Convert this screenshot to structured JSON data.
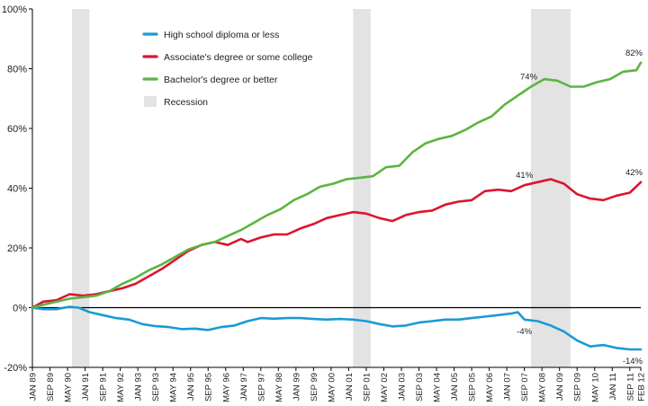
{
  "chart_data": {
    "type": "line",
    "title": "",
    "xlabel": "",
    "ylabel": "",
    "ylim": [
      -20,
      100
    ],
    "grid": false,
    "legend_position": "top-center",
    "yticks": [
      {
        "value": 100,
        "label": "100%"
      },
      {
        "value": 80,
        "label": "80%"
      },
      {
        "value": 60,
        "label": "60%"
      },
      {
        "value": 40,
        "label": "40%"
      },
      {
        "value": 20,
        "label": "20%"
      },
      {
        "value": 0,
        "label": "0%"
      },
      {
        "value": -20,
        "label": "-20%"
      }
    ],
    "xticks": [
      {
        "date": "1989-01",
        "label": "JAN 89"
      },
      {
        "date": "1989-09",
        "label": "SEP 89"
      },
      {
        "date": "1990-05",
        "label": "MAY 90"
      },
      {
        "date": "1991-01",
        "label": "JAN 91"
      },
      {
        "date": "1991-09",
        "label": "SEP 91"
      },
      {
        "date": "1992-05",
        "label": "MAY 92"
      },
      {
        "date": "1993-01",
        "label": "JAN 93"
      },
      {
        "date": "1993-09",
        "label": "SEP 93"
      },
      {
        "date": "1994-05",
        "label": "MAY 94"
      },
      {
        "date": "1995-01",
        "label": "JAN 95"
      },
      {
        "date": "1995-09",
        "label": "SEP 95"
      },
      {
        "date": "1996-05",
        "label": "MAY 96"
      },
      {
        "date": "1997-01",
        "label": "JAN 97"
      },
      {
        "date": "1997-09",
        "label": "SEP 97"
      },
      {
        "date": "1998-05",
        "label": "MAY 98"
      },
      {
        "date": "1999-01",
        "label": "JAN 99"
      },
      {
        "date": "1999-09",
        "label": "SEP 99"
      },
      {
        "date": "2000-05",
        "label": "MAY 00"
      },
      {
        "date": "2001-01",
        "label": "JAN 01"
      },
      {
        "date": "2001-09",
        "label": "SEP 01"
      },
      {
        "date": "2002-05",
        "label": "MAY 02"
      },
      {
        "date": "2003-01",
        "label": "JAN 03"
      },
      {
        "date": "2003-09",
        "label": "SEP 03"
      },
      {
        "date": "2004-05",
        "label": "MAY 04"
      },
      {
        "date": "2005-01",
        "label": "JAN 05"
      },
      {
        "date": "2005-09",
        "label": "SEP 05"
      },
      {
        "date": "2006-05",
        "label": "MAY 06"
      },
      {
        "date": "2007-01",
        "label": "JAN 07"
      },
      {
        "date": "2007-09",
        "label": "SEP 07"
      },
      {
        "date": "2008-05",
        "label": "MAY 08"
      },
      {
        "date": "2009-01",
        "label": "JAN 09"
      },
      {
        "date": "2009-09",
        "label": "SEP 09"
      },
      {
        "date": "2010-05",
        "label": "MAY 10"
      },
      {
        "date": "2011-01",
        "label": "JAN 11"
      },
      {
        "date": "2011-09",
        "label": "SEP 11"
      },
      {
        "date": "2012-02",
        "label": "FEB 12"
      }
    ],
    "recessions": [
      {
        "start": "1990-07",
        "end": "1991-03"
      },
      {
        "start": "2001-03",
        "end": "2001-11"
      },
      {
        "start": "2007-12",
        "end": "2009-06"
      }
    ],
    "recession_label": "Recession",
    "recession_color": "#e3e3e4",
    "series": [
      {
        "name": "High school diploma or less",
        "color": "#1a9ad6",
        "points": [
          [
            "1989-01",
            0
          ],
          [
            "1989-06",
            -0.5
          ],
          [
            "1989-12",
            -0.5
          ],
          [
            "1990-06",
            0.3
          ],
          [
            "1990-10",
            0
          ],
          [
            "1991-03",
            -1.5
          ],
          [
            "1991-09",
            -2.5
          ],
          [
            "1992-03",
            -3.5
          ],
          [
            "1992-09",
            -4
          ],
          [
            "1993-03",
            -5.5
          ],
          [
            "1993-09",
            -6.2
          ],
          [
            "1994-03",
            -6.5
          ],
          [
            "1994-09",
            -7.2
          ],
          [
            "1995-03",
            -7
          ],
          [
            "1995-09",
            -7.5
          ],
          [
            "1996-03",
            -6.5
          ],
          [
            "1996-09",
            -6
          ],
          [
            "1997-03",
            -4.5
          ],
          [
            "1997-09",
            -3.5
          ],
          [
            "1998-03",
            -3.7
          ],
          [
            "1998-09",
            -3.5
          ],
          [
            "1999-03",
            -3.5
          ],
          [
            "1999-09",
            -3.8
          ],
          [
            "2000-03",
            -4
          ],
          [
            "2000-09",
            -3.8
          ],
          [
            "2001-03",
            -4
          ],
          [
            "2001-09",
            -4.5
          ],
          [
            "2002-03",
            -5.5
          ],
          [
            "2002-09",
            -6.3
          ],
          [
            "2003-03",
            -6
          ],
          [
            "2003-09",
            -5
          ],
          [
            "2004-03",
            -4.5
          ],
          [
            "2004-09",
            -4
          ],
          [
            "2005-03",
            -4
          ],
          [
            "2005-09",
            -3.5
          ],
          [
            "2006-03",
            -3
          ],
          [
            "2006-09",
            -2.5
          ],
          [
            "2007-03",
            -2
          ],
          [
            "2007-06",
            -1.5
          ],
          [
            "2007-09",
            -4
          ],
          [
            "2008-03",
            -4.5
          ],
          [
            "2008-09",
            -6
          ],
          [
            "2009-03",
            -8
          ],
          [
            "2009-09",
            -11
          ],
          [
            "2010-03",
            -13
          ],
          [
            "2010-09",
            -12.5
          ],
          [
            "2011-03",
            -13.5
          ],
          [
            "2011-09",
            -14
          ],
          [
            "2012-02",
            -14
          ]
        ]
      },
      {
        "name": "Associate's degree or some college",
        "color": "#dd1431",
        "points": [
          [
            "1989-01",
            0
          ],
          [
            "1989-06",
            2
          ],
          [
            "1989-12",
            2.5
          ],
          [
            "1990-06",
            4.5
          ],
          [
            "1990-12",
            4
          ],
          [
            "1991-06",
            4.5
          ],
          [
            "1991-12",
            5.5
          ],
          [
            "1992-06",
            6.5
          ],
          [
            "1992-12",
            8
          ],
          [
            "1993-06",
            10.5
          ],
          [
            "1993-12",
            13
          ],
          [
            "1994-06",
            16
          ],
          [
            "1994-12",
            19
          ],
          [
            "1995-06",
            21
          ],
          [
            "1995-12",
            22
          ],
          [
            "1996-06",
            21
          ],
          [
            "1996-12",
            23
          ],
          [
            "1997-03",
            22
          ],
          [
            "1997-09",
            23.5
          ],
          [
            "1998-03",
            24.5
          ],
          [
            "1998-09",
            24.5
          ],
          [
            "1999-03",
            26.5
          ],
          [
            "1999-09",
            28
          ],
          [
            "2000-03",
            30
          ],
          [
            "2000-09",
            31
          ],
          [
            "2001-03",
            32
          ],
          [
            "2001-09",
            31.5
          ],
          [
            "2002-03",
            30
          ],
          [
            "2002-09",
            29
          ],
          [
            "2003-03",
            31
          ],
          [
            "2003-09",
            32
          ],
          [
            "2004-03",
            32.5
          ],
          [
            "2004-09",
            34.5
          ],
          [
            "2005-03",
            35.5
          ],
          [
            "2005-09",
            36
          ],
          [
            "2006-03",
            39
          ],
          [
            "2006-09",
            39.5
          ],
          [
            "2007-03",
            39
          ],
          [
            "2007-09",
            41
          ],
          [
            "2008-03",
            42
          ],
          [
            "2008-09",
            43
          ],
          [
            "2009-03",
            41.5
          ],
          [
            "2009-09",
            38
          ],
          [
            "2010-03",
            36.5
          ],
          [
            "2010-09",
            36
          ],
          [
            "2011-03",
            37.5
          ],
          [
            "2011-09",
            38.5
          ],
          [
            "2012-02",
            42
          ]
        ]
      },
      {
        "name": "Bachelor's degree or better",
        "color": "#5ab540",
        "points": [
          [
            "1989-01",
            0
          ],
          [
            "1989-06",
            1
          ],
          [
            "1989-12",
            2
          ],
          [
            "1990-06",
            3
          ],
          [
            "1990-12",
            3.5
          ],
          [
            "1991-06",
            4
          ],
          [
            "1991-12",
            5.5
          ],
          [
            "1992-06",
            8
          ],
          [
            "1992-12",
            10
          ],
          [
            "1993-06",
            12.5
          ],
          [
            "1993-12",
            14.5
          ],
          [
            "1994-06",
            17
          ],
          [
            "1994-12",
            19.5
          ],
          [
            "1995-06",
            21
          ],
          [
            "1995-12",
            22
          ],
          [
            "1996-06",
            24
          ],
          [
            "1996-12",
            26
          ],
          [
            "1997-06",
            28.5
          ],
          [
            "1997-12",
            31
          ],
          [
            "1998-06",
            33
          ],
          [
            "1998-12",
            36
          ],
          [
            "1999-06",
            38
          ],
          [
            "1999-12",
            40.5
          ],
          [
            "2000-06",
            41.5
          ],
          [
            "2000-12",
            43
          ],
          [
            "2001-06",
            43.5
          ],
          [
            "2001-12",
            44
          ],
          [
            "2002-06",
            47
          ],
          [
            "2002-12",
            47.5
          ],
          [
            "2003-06",
            52
          ],
          [
            "2003-12",
            55
          ],
          [
            "2004-06",
            56.5
          ],
          [
            "2004-12",
            57.5
          ],
          [
            "2005-06",
            59.5
          ],
          [
            "2005-12",
            62
          ],
          [
            "2006-06",
            64
          ],
          [
            "2006-12",
            68
          ],
          [
            "2007-06",
            71
          ],
          [
            "2007-12",
            74
          ],
          [
            "2008-06",
            76.5
          ],
          [
            "2008-12",
            76
          ],
          [
            "2009-06",
            74
          ],
          [
            "2009-12",
            74
          ],
          [
            "2010-06",
            75.5
          ],
          [
            "2010-12",
            76.5
          ],
          [
            "2011-06",
            79
          ],
          [
            "2011-12",
            79.5
          ],
          [
            "2012-02",
            82
          ]
        ]
      }
    ],
    "annotations": [
      {
        "text": "82%",
        "series": 2,
        "date": "2012-02",
        "value": 82,
        "side": "above"
      },
      {
        "text": "74%",
        "series": 2,
        "date": "2007-11",
        "value": 74,
        "side": "above"
      },
      {
        "text": "41%",
        "series": 1,
        "date": "2007-09",
        "value": 41,
        "side": "above"
      },
      {
        "text": "42%",
        "series": 1,
        "date": "2012-02",
        "value": 42,
        "side": "above"
      },
      {
        "text": "-4%",
        "series": 0,
        "date": "2007-09",
        "value": -4,
        "side": "below"
      },
      {
        "text": "-14%",
        "series": 0,
        "date": "2012-02",
        "value": -14,
        "side": "below"
      }
    ]
  }
}
